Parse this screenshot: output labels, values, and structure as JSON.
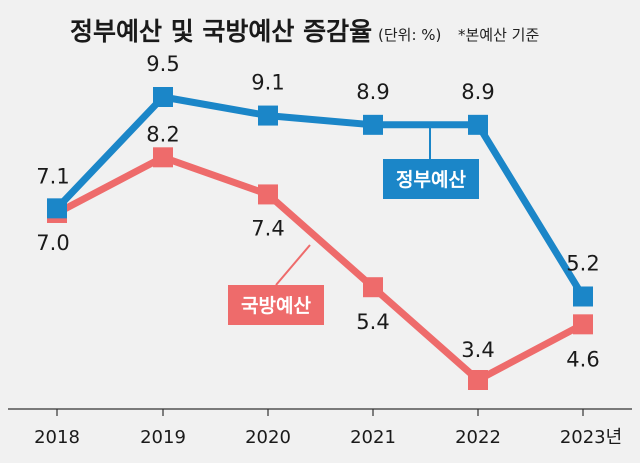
{
  "chart_data": {
    "type": "line",
    "title": "정부예산 및 국방예산 증감율",
    "subtitle": "(단위: %)",
    "note": "*본예산 기준",
    "categories": [
      "2018",
      "2019",
      "2020",
      "2021",
      "2022",
      "2023년"
    ],
    "series": [
      {
        "name": "정부예산",
        "values": [
          7.1,
          9.5,
          9.1,
          8.9,
          8.9,
          5.2
        ],
        "color": "#1b86c8"
      },
      {
        "name": "국방예산",
        "values": [
          7.0,
          8.2,
          7.4,
          5.4,
          3.4,
          4.6
        ],
        "color": "#ee6b6b"
      }
    ],
    "xlabel": "",
    "ylabel": "",
    "grid": false,
    "legend": "inline labels"
  }
}
